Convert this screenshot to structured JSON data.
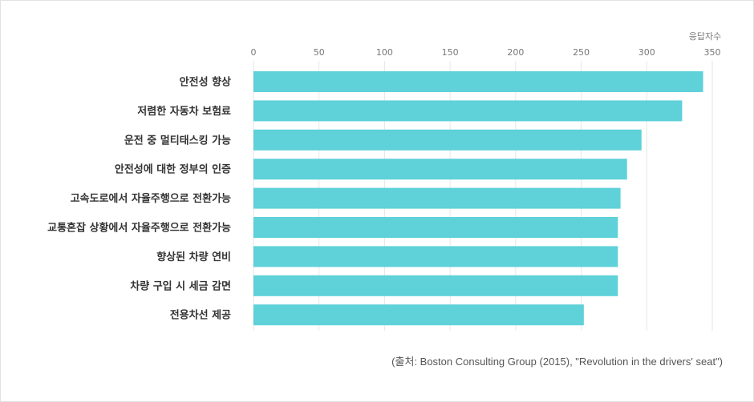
{
  "chart_data": {
    "type": "bar",
    "orientation": "horizontal",
    "unit_label": "응답자수",
    "categories": [
      "안전성 향상",
      "저렴한 자동차 보험료",
      "운전 중 멀티태스킹 가능",
      "안전성에 대한 정부의 인증",
      "고속도로에서 자율주행으로 전환가능",
      "교통혼잡 상황에서 자율주행으로 전환가능",
      "향상된 차량 연비",
      "차량 구입 시 세금 감면",
      "전용차선 제공"
    ],
    "values": [
      343,
      327,
      296,
      285,
      280,
      278,
      278,
      278,
      252
    ],
    "xlim": [
      0,
      350
    ],
    "xticks": [
      0,
      50,
      100,
      150,
      200,
      250,
      300,
      350
    ],
    "axis_position": "top",
    "grid": true,
    "bar_color": "#5ed1d9",
    "grid_color": "#e6e6e6"
  },
  "source_note": "(출처: Boston Consulting Group (2015), \"Revolution in the drivers' seat\")"
}
